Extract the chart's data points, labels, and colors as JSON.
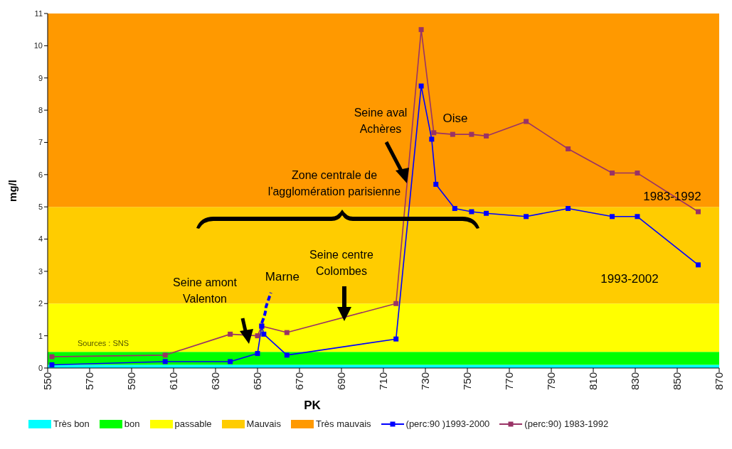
{
  "chart_data": {
    "type": "line",
    "xlabel": "PK",
    "ylabel": "mg/l",
    "xlim": [
      550,
      870
    ],
    "xticks": [
      550,
      570,
      590,
      610,
      630,
      650,
      670,
      690,
      710,
      730,
      750,
      770,
      790,
      810,
      830,
      850,
      870
    ],
    "ylim": [
      0,
      11
    ],
    "yticks": [
      0,
      1,
      2,
      3,
      4,
      5,
      6,
      7,
      8,
      9,
      10,
      11
    ],
    "legend": "bottom",
    "marker": "square",
    "line_style": "solid",
    "bands": [
      {
        "axis": "y",
        "from": 0,
        "to": 0.1,
        "label": "Très bon",
        "color": "#00ffff"
      },
      {
        "axis": "y",
        "from": 0.1,
        "to": 0.5,
        "label": "bon",
        "color": "#00ff00"
      },
      {
        "axis": "y",
        "from": 0.5,
        "to": 2,
        "label": "passable",
        "color": "#ffff00"
      },
      {
        "axis": "y",
        "from": 2,
        "to": 5,
        "label": "Mauvais",
        "color": "#ffcc00"
      },
      {
        "axis": "y",
        "from": 5,
        "to": 11,
        "label": "Très mauvais",
        "color": "#ff9900"
      }
    ],
    "series": [
      {
        "name": "(perc:90 )1993-2000",
        "color": "#0000ff",
        "x": [
          552,
          606,
          637,
          650,
          652,
          653,
          664,
          716,
          728,
          733,
          735,
          744,
          752,
          759,
          778,
          798,
          819,
          831,
          860
        ],
        "values": [
          0.1,
          0.2,
          0.2,
          0.45,
          1.3,
          1.05,
          0.4,
          0.9,
          8.75,
          7.1,
          5.7,
          4.95,
          4.85,
          4.8,
          4.7,
          4.95,
          4.7,
          4.7,
          3.2
        ]
      },
      {
        "name": "(perc:90) 1983-1992",
        "color": "#993366",
        "x": [
          552,
          606,
          637,
          650,
          652,
          664,
          716,
          728,
          734,
          743,
          752,
          759,
          778,
          798,
          819,
          831,
          860
        ],
        "values": [
          0.35,
          0.4,
          1.05,
          1.0,
          1.3,
          1.1,
          2.0,
          10.5,
          7.3,
          7.25,
          7.25,
          7.2,
          7.65,
          6.8,
          6.05,
          6.05,
          4.85
        ]
      }
    ],
    "annotations": [
      "Seine aval\nAchères",
      "Oise",
      "Zone centrale de\nl'agglomération parisienne",
      "1983-1992",
      "1993-2002",
      "Seine centre\nColombes",
      {
        "text": "Marne",
        "x": 652,
        "y": 1.3
      },
      "Seine amont\nValenton",
      "Sources : SNS"
    ]
  }
}
